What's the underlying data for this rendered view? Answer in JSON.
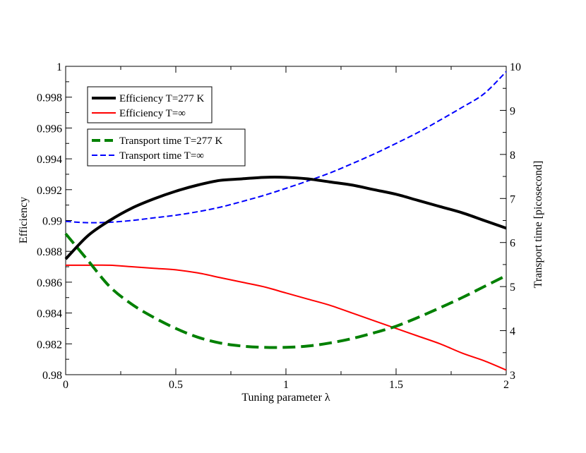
{
  "chart_data": {
    "type": "line",
    "title": "",
    "xlabel": "Tuning parameter λ",
    "ylabel_left": "Efficiency",
    "ylabel_right": "Transport time [picosecond]",
    "xlim": [
      0,
      2
    ],
    "ylim_left": [
      0.98,
      1.0
    ],
    "ylim_right": [
      3,
      10
    ],
    "x_ticks": [
      0,
      0.5,
      1,
      1.5,
      2
    ],
    "x_tick_labels": [
      "0",
      "0.5",
      "1",
      "1.5",
      "2"
    ],
    "y_left_ticks": [
      0.98,
      0.982,
      0.984,
      0.986,
      0.988,
      0.99,
      0.992,
      0.994,
      0.996,
      0.998,
      1.0
    ],
    "y_left_tick_labels": [
      "0.98",
      "0.982",
      "0.984",
      "0.986",
      "0.988",
      "0.99",
      "0.992",
      "0.994",
      "0.996",
      "0.998",
      "1"
    ],
    "y_right_ticks": [
      3,
      4,
      5,
      6,
      7,
      8,
      9,
      10
    ],
    "y_right_tick_labels": [
      "3",
      "4",
      "5",
      "6",
      "7",
      "8",
      "9",
      "10"
    ],
    "grid": false,
    "legend_position": "top-left",
    "legend_groups": [
      [
        "Efficiency T=277 K",
        "Efficiency T=∞"
      ],
      [
        "Transport time T=277 K",
        "Transport time T=∞"
      ]
    ],
    "x": [
      0,
      0.1,
      0.2,
      0.3,
      0.4,
      0.5,
      0.6,
      0.7,
      0.8,
      0.9,
      1.0,
      1.1,
      1.2,
      1.3,
      1.4,
      1.5,
      1.6,
      1.7,
      1.8,
      1.9,
      2.0
    ],
    "series": [
      {
        "name": "Efficiency T=277 K",
        "axis": "left",
        "color": "#000000",
        "style": "solid",
        "width": 4,
        "values": [
          0.9875,
          0.989,
          0.99,
          0.9908,
          0.9914,
          0.9919,
          0.9923,
          0.9926,
          0.9927,
          0.9928,
          0.9928,
          0.9927,
          0.9925,
          0.9923,
          0.992,
          0.9917,
          0.9913,
          0.9909,
          0.9905,
          0.99,
          0.9895
        ]
      },
      {
        "name": "Efficiency T=∞",
        "axis": "left",
        "color": "#ff0000",
        "style": "solid",
        "width": 2,
        "values": [
          0.9871,
          0.9871,
          0.9871,
          0.987,
          0.9869,
          0.9868,
          0.9866,
          0.9863,
          0.986,
          0.9857,
          0.9853,
          0.9849,
          0.9845,
          0.984,
          0.9835,
          0.983,
          0.9825,
          0.982,
          0.9814,
          0.9809,
          0.9803
        ]
      },
      {
        "name": "Transport time T=277 K",
        "axis": "right",
        "color": "#008000",
        "style": "dashed",
        "width": 4,
        "values": [
          6.2,
          5.6,
          5.0,
          4.6,
          4.3,
          4.05,
          3.85,
          3.72,
          3.65,
          3.62,
          3.62,
          3.65,
          3.72,
          3.82,
          3.95,
          4.1,
          4.3,
          4.52,
          4.75,
          5.0,
          5.25
        ]
      },
      {
        "name": "Transport time T=∞",
        "axis": "right",
        "color": "#0000ff",
        "style": "dashed",
        "width": 2,
        "values": [
          6.48,
          6.45,
          6.46,
          6.5,
          6.56,
          6.62,
          6.7,
          6.8,
          6.93,
          7.07,
          7.23,
          7.4,
          7.58,
          7.79,
          8.01,
          8.25,
          8.5,
          8.78,
          9.07,
          9.38,
          9.88
        ]
      }
    ]
  }
}
